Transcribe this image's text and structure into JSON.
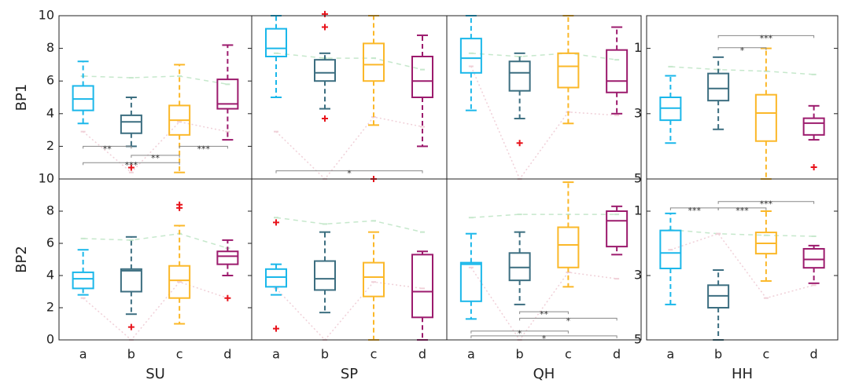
{
  "categories": [
    "a",
    "b",
    "c",
    "d"
  ],
  "chart_data": [
    {
      "type": "box",
      "ylabel": "BP1",
      "ylim": [
        0,
        10
      ],
      "yticks": [
        2,
        4,
        6,
        8,
        10
      ],
      "boxes": [
        {
          "color": "#1ab7ea",
          "whisker_low": 3.4,
          "q1": 4.2,
          "median": 4.9,
          "q3": 5.7,
          "whisker_high": 7.2,
          "outliers": []
        },
        {
          "color": "#3c6e80",
          "whisker_low": 2.0,
          "q1": 2.8,
          "median": 3.5,
          "q3": 3.9,
          "whisker_high": 5.0,
          "outliers": [
            0.7
          ]
        },
        {
          "color": "#fbb829",
          "whisker_low": 0.4,
          "q1": 2.7,
          "median": 3.6,
          "q3": 4.5,
          "whisker_high": 7.0,
          "outliers": []
        },
        {
          "color": "#9c1b6d",
          "whisker_low": 2.4,
          "q1": 4.3,
          "median": 4.6,
          "q3": 6.1,
          "whisker_high": 8.2,
          "outliers": []
        }
      ],
      "mean_line": {
        "color": "#c6e8cc",
        "values": [
          6.3,
          6.2,
          6.3,
          5.8
        ]
      },
      "min_line": {
        "color": "#f0d0d8",
        "values": [
          2.9,
          0.4,
          3.5,
          2.9
        ]
      },
      "brackets": [
        {
          "from": "a",
          "to": "b",
          "y": 2.0,
          "label": "**"
        },
        {
          "from": "c",
          "to": "d",
          "y": 2.0,
          "label": "***"
        },
        {
          "from": "b",
          "to": "c",
          "y": 1.45,
          "label": "**"
        },
        {
          "from": "a",
          "to": "c",
          "y": 1.0,
          "label": "***"
        }
      ]
    },
    {
      "type": "box",
      "ylim": [
        0,
        10
      ],
      "boxes": [
        {
          "color": "#1ab7ea",
          "whisker_low": 5.0,
          "q1": 7.5,
          "median": 8.0,
          "q3": 9.2,
          "whisker_high": 10,
          "outliers": []
        },
        {
          "color": "#3c6e80",
          "whisker_low": 4.3,
          "q1": 6.0,
          "median": 6.5,
          "q3": 7.3,
          "whisker_high": 7.7,
          "outliers": [
            10.1,
            9.3,
            3.7
          ]
        },
        {
          "color": "#fbb829",
          "whisker_low": 3.3,
          "q1": 6.0,
          "median": 7.0,
          "q3": 8.3,
          "whisker_high": 10,
          "outliers": [
            0
          ]
        },
        {
          "color": "#9c1b6d",
          "whisker_low": 2.0,
          "q1": 5.0,
          "median": 6.0,
          "q3": 7.5,
          "whisker_high": 8.8,
          "outliers": []
        }
      ],
      "mean_line": {
        "color": "#c6e8cc",
        "values": [
          7.7,
          7.4,
          7.4,
          6.7
        ]
      },
      "min_line": {
        "color": "#f0d0d8",
        "values": [
          2.9,
          0,
          3.8,
          3.2
        ]
      },
      "brackets": [
        {
          "from": "a",
          "to": "d",
          "y": 0.5,
          "label": "*"
        }
      ]
    },
    {
      "type": "box",
      "ylim": [
        0,
        10
      ],
      "boxes": [
        {
          "color": "#1ab7ea",
          "whisker_low": 4.2,
          "q1": 6.5,
          "median": 7.4,
          "q3": 8.6,
          "whisker_high": 10,
          "outliers": []
        },
        {
          "color": "#3c6e80",
          "whisker_low": 3.7,
          "q1": 5.4,
          "median": 6.5,
          "q3": 7.2,
          "whisker_high": 7.7,
          "outliers": [
            2.2
          ]
        },
        {
          "color": "#fbb829",
          "whisker_low": 3.4,
          "q1": 5.6,
          "median": 6.9,
          "q3": 7.7,
          "whisker_high": 10,
          "outliers": []
        },
        {
          "color": "#9c1b6d",
          "whisker_low": 4.0,
          "q1": 5.3,
          "median": 6.0,
          "q3": 7.9,
          "whisker_high": 9.3,
          "outliers": []
        }
      ],
      "mean_line": {
        "color": "#c6e8cc",
        "values": [
          7.7,
          7.5,
          7.7,
          7.3
        ]
      },
      "min_line": {
        "color": "#f0d0d8",
        "values": [
          6.9,
          0,
          4.1,
          3.9
        ]
      },
      "brackets": []
    },
    {
      "type": "box",
      "ylim": [
        0,
        5
      ],
      "y_reversed": true,
      "yticks": [
        1,
        3,
        5
      ],
      "boxes": [
        {
          "color": "#1ab7ea",
          "whisker_low": 1.84,
          "q1": 2.5,
          "median": 2.83,
          "q3": 3.2,
          "whisker_high": 3.9,
          "outliers": []
        },
        {
          "color": "#3c6e80",
          "whisker_low": 1.27,
          "q1": 1.77,
          "median": 2.23,
          "q3": 2.6,
          "whisker_high": 3.48,
          "outliers": []
        },
        {
          "color": "#fbb829",
          "whisker_low": 1.0,
          "q1": 2.42,
          "median": 2.98,
          "q3": 3.84,
          "whisker_high": 5.0,
          "outliers": []
        },
        {
          "color": "#9c1b6d",
          "whisker_low": 2.76,
          "q1": 3.14,
          "median": 3.29,
          "q3": 3.65,
          "whisker_high": 3.8,
          "outliers": [
            4.64
          ]
        }
      ],
      "mean_line": {
        "color": "#c6e8cc",
        "values": [
          1.56,
          1.65,
          1.7,
          1.8
        ]
      },
      "brackets": [
        {
          "from": "b",
          "to": "d",
          "y": 0.61,
          "label": "***"
        },
        {
          "from": "b",
          "to": "c",
          "y": 0.98,
          "label": "*"
        }
      ]
    },
    {
      "type": "box",
      "ylabel": "BP2",
      "xlabel": "SU",
      "ylim": [
        0,
        10
      ],
      "yticks": [
        0,
        2,
        4,
        6,
        8,
        10
      ],
      "boxes": [
        {
          "color": "#1ab7ea",
          "whisker_low": 2.8,
          "q1": 3.2,
          "median": 3.8,
          "q3": 4.2,
          "whisker_high": 5.6,
          "outliers": []
        },
        {
          "color": "#3c6e80",
          "whisker_low": 1.6,
          "q1": 3.0,
          "median": 4.3,
          "q3": 4.4,
          "whisker_high": 6.4,
          "outliers": [
            0.8
          ]
        },
        {
          "color": "#fbb829",
          "whisker_low": 1.0,
          "q1": 2.6,
          "median": 3.7,
          "q3": 4.6,
          "whisker_high": 7.1,
          "outliers": [
            8.4,
            8.2
          ]
        },
        {
          "color": "#9c1b6d",
          "whisker_low": 4.0,
          "q1": 4.7,
          "median": 5.2,
          "q3": 5.5,
          "whisker_high": 6.2,
          "outliers": [
            2.6
          ]
        }
      ],
      "mean_line": {
        "color": "#c6e8cc",
        "values": [
          6.3,
          6.2,
          6.6,
          5.7
        ]
      },
      "min_line": {
        "color": "#f0d0d8",
        "values": [
          2.6,
          0,
          3.6,
          2.6
        ]
      },
      "brackets": []
    },
    {
      "type": "box",
      "xlabel": "SP",
      "ylim": [
        0,
        10
      ],
      "boxes": [
        {
          "color": "#1ab7ea",
          "whisker_low": 2.8,
          "q1": 3.3,
          "median": 3.9,
          "q3": 4.4,
          "whisker_high": 4.7,
          "outliers": [
            7.3,
            0.7
          ]
        },
        {
          "color": "#3c6e80",
          "whisker_low": 1.7,
          "q1": 3.1,
          "median": 3.8,
          "q3": 4.9,
          "whisker_high": 6.7,
          "outliers": []
        },
        {
          "color": "#fbb829",
          "whisker_low": 0,
          "q1": 2.7,
          "median": 3.9,
          "q3": 4.8,
          "whisker_high": 6.7,
          "outliers": []
        },
        {
          "color": "#9c1b6d",
          "whisker_low": 0,
          "q1": 1.4,
          "median": 3.0,
          "q3": 5.3,
          "whisker_high": 5.5,
          "outliers": []
        }
      ],
      "mean_line": {
        "color": "#c6e8cc",
        "values": [
          7.6,
          7.2,
          7.4,
          6.7
        ]
      },
      "min_line": {
        "color": "#f0d0d8",
        "values": [
          3.2,
          0,
          3.6,
          3.2
        ]
      },
      "brackets": []
    },
    {
      "type": "box",
      "xlabel": "QH",
      "ylim": [
        0,
        10
      ],
      "boxes": [
        {
          "color": "#1ab7ea",
          "whisker_low": 1.3,
          "q1": 2.4,
          "median": 4.7,
          "q3": 4.8,
          "whisker_high": 6.6,
          "outliers": []
        },
        {
          "color": "#3c6e80",
          "whisker_low": 2.2,
          "q1": 3.7,
          "median": 4.5,
          "q3": 5.4,
          "whisker_high": 6.7,
          "outliers": []
        },
        {
          "color": "#fbb829",
          "whisker_low": 3.3,
          "q1": 4.5,
          "median": 5.9,
          "q3": 7.0,
          "whisker_high": 9.8,
          "outliers": []
        },
        {
          "color": "#9c1b6d",
          "whisker_low": 5.3,
          "q1": 5.8,
          "median": 7.4,
          "q3": 8.0,
          "whisker_high": 8.3,
          "outliers": []
        }
      ],
      "mean_line": {
        "color": "#c6e8cc",
        "values": [
          7.6,
          7.8,
          7.8,
          7.8
        ]
      },
      "min_line": {
        "color": "#f0d0d8",
        "values": [
          4.5,
          0,
          4.2,
          3.8
        ]
      },
      "brackets": [
        {
          "from": "b",
          "to": "c",
          "y": 1.75,
          "label": "**"
        },
        {
          "from": "b",
          "to": "d",
          "y": 1.35,
          "label": "*"
        },
        {
          "from": "a",
          "to": "c",
          "y": 0.55,
          "label": "*"
        },
        {
          "from": "a",
          "to": "d",
          "y": 0.25,
          "label": "*"
        }
      ]
    },
    {
      "type": "box",
      "xlabel": "HH",
      "ylim": [
        0,
        5
      ],
      "y_reversed": true,
      "yticks": [
        1,
        3,
        5
      ],
      "boxes": [
        {
          "color": "#1ab7ea",
          "whisker_low": 1.07,
          "q1": 1.6,
          "median": 2.3,
          "q3": 2.78,
          "whisker_high": 3.9,
          "outliers": []
        },
        {
          "color": "#3c6e80",
          "whisker_low": 2.83,
          "q1": 3.3,
          "median": 3.63,
          "q3": 4.0,
          "whisker_high": 5.0,
          "outliers": []
        },
        {
          "color": "#fbb829",
          "whisker_low": 1.0,
          "q1": 1.66,
          "median": 2.0,
          "q3": 2.32,
          "whisker_high": 3.17,
          "outliers": []
        },
        {
          "color": "#9c1b6d",
          "whisker_low": 2.07,
          "q1": 2.17,
          "median": 2.5,
          "q3": 2.76,
          "whisker_high": 3.24,
          "outliers": []
        }
      ],
      "mean_line": {
        "color": "#c6e8cc",
        "values": [
          1.58,
          1.7,
          1.75,
          1.78
        ]
      },
      "min_line": {
        "color": "#f0d0d8",
        "values": [
          2.2,
          1.7,
          3.7,
          3.3
        ]
      },
      "brackets": [
        {
          "from": "a",
          "to": "b",
          "y": 0.9,
          "label": "***"
        },
        {
          "from": "b",
          "to": "c",
          "y": 0.9,
          "label": "***"
        },
        {
          "from": "b",
          "to": "d",
          "y": 0.7,
          "label": "***"
        }
      ]
    }
  ]
}
